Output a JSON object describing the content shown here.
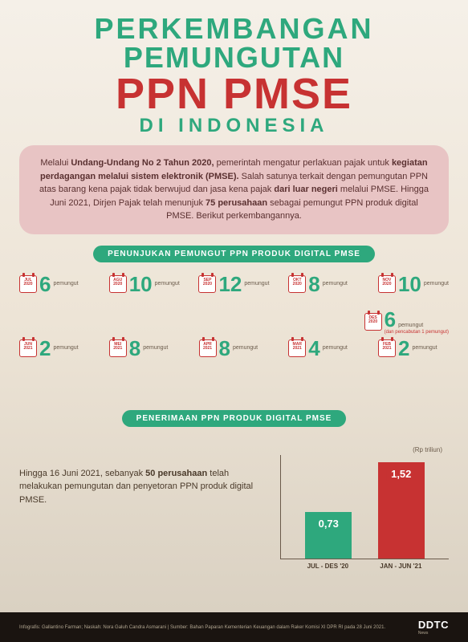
{
  "title": {
    "line1": "PERKEMBANGAN",
    "line2": "PEMUNGUTAN",
    "line3": "PPN PMSE",
    "line4": "DI INDONESIA"
  },
  "intro": {
    "pre": "Melalui ",
    "b1": "Undang-Undang No 2 Tahun 2020,",
    "mid1": " pemerintah mengatur perlakuan pajak untuk ",
    "b2": "kegiatan perdagangan melalui sistem elektronik (PMSE).",
    "mid2": " Salah satunya terkait dengan pemungutan PPN atas barang kena pajak tidak berwujud dan jasa kena pajak ",
    "b3": "dari luar negeri",
    "mid3": " melalui PMSE. Hingga Juni 2021, Dirjen Pajak telah menunjuk ",
    "b4": "75 perusahaan",
    "end": " sebagai pemungut PPN produk digital PMSE. Berikut perkembangannya."
  },
  "section1_header": "PENUNJUKAN PEMUNGUT PPN PRODUK DIGITAL PMSE",
  "timeline": {
    "row1": [
      {
        "month": "JUL",
        "year": "2020",
        "value": "6",
        "label": "pemungut"
      },
      {
        "month": "AGU",
        "year": "2020",
        "value": "10",
        "label": "pemungut"
      },
      {
        "month": "SEP",
        "year": "2020",
        "value": "12",
        "label": "pemungut"
      },
      {
        "month": "OKT",
        "year": "2020",
        "value": "8",
        "label": "pemungut"
      },
      {
        "month": "NOV",
        "year": "2020",
        "value": "10",
        "label": "pemungut"
      }
    ],
    "des": {
      "month": "DES",
      "year": "2020",
      "value": "6",
      "label": "pemungut",
      "extra": "(dan pencabutan 1 pemungut)"
    },
    "row2": [
      {
        "month": "JUN",
        "year": "2021",
        "value": "2",
        "label": "pemungut"
      },
      {
        "month": "MEI",
        "year": "2021",
        "value": "8",
        "label": "pemungut"
      },
      {
        "month": "APR",
        "year": "2021",
        "value": "8",
        "label": "pemungut"
      },
      {
        "month": "MAR",
        "year": "2021",
        "value": "4",
        "label": "pemungut"
      },
      {
        "month": "FEB",
        "year": "2021",
        "value": "2",
        "label": "pemungut"
      }
    ]
  },
  "section2_header": "PENERIMAAN PPN PRODUK DIGITAL PMSE",
  "chart": {
    "ylabel": "(Rp triliun)",
    "text_pre": "Hingga 16 Juni 2021, sebanyak ",
    "text_b": "50 perusahaan",
    "text_post": " telah melakukan pemungutan dan penyetoran PPN produk digital PMSE.",
    "bars": [
      {
        "label": "JUL - DES '20",
        "value": "0,73",
        "height": 58,
        "color": "#2ea87d"
      },
      {
        "label": "JAN - JUN '21",
        "value": "1,52",
        "height": 120,
        "color": "#c73232"
      }
    ],
    "ylim": [
      0,
      1.6
    ]
  },
  "footer": {
    "credits": "Infografis: Gallantino Farman; Naskah: Nora Galuh Candra Asmarani | Sumber: Bahan Paparan Kementerian Keuangan dalam Raker Komisi XI DPR RI pada 28 Juni 2021.",
    "logo": "DDTC",
    "logo_sub": "News"
  }
}
